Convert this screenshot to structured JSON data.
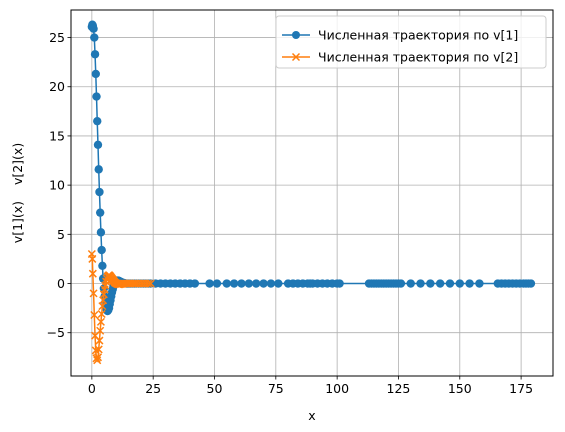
{
  "chart_data": {
    "type": "line",
    "xlabel": "x",
    "ylabel": "v[1](x)    v[2](x)",
    "xlim": [
      -8.5,
      188
    ],
    "ylim": [
      -9.4,
      27.8
    ],
    "xticks": [
      0,
      25,
      50,
      75,
      100,
      125,
      150,
      175
    ],
    "yticks": [
      -5,
      0,
      5,
      10,
      15,
      20,
      25
    ],
    "grid": true,
    "legend_position": "top-right",
    "series": [
      {
        "name": "Численная траектория по v[1]",
        "color": "#1f77b4",
        "marker": "circle",
        "x": [
          0,
          0.2,
          0.4,
          0.7,
          1.0,
          1.3,
          1.6,
          1.9,
          2.2,
          2.5,
          2.8,
          3.1,
          3.4,
          3.7,
          4.0,
          4.3,
          4.6,
          4.9,
          5.2,
          5.5,
          5.8,
          6.1,
          6.4,
          6.7,
          7.0,
          7.3,
          7.6,
          7.9,
          8.2,
          8.5,
          8.8,
          9.1,
          9.4,
          9.7,
          10.0,
          10.4,
          10.8,
          11.2,
          11.6,
          12.0,
          12.5,
          13.0,
          13.5,
          14.0,
          14.6,
          15.2,
          15.8,
          16.5,
          17.2,
          18.0,
          19.0,
          20.0,
          21.0,
          22.0,
          23.0,
          24.0,
          26.0,
          28.0,
          30.0,
          32.0,
          34.0,
          36.0,
          38.0,
          40.0,
          42.0,
          48.0,
          51.0,
          55.0,
          58.0,
          61.0,
          64.0,
          67.0,
          70.0,
          73.0,
          76.0,
          80.0,
          82.0,
          84.0,
          86.0,
          88.0,
          89.0,
          90.0,
          92.0,
          94.0,
          96.0,
          98.0,
          100.0,
          101.0,
          113.0,
          114.0,
          115.0,
          116.0,
          117.0,
          118.0,
          119.0,
          120.0,
          121.0,
          122.0,
          123.0,
          124.0,
          125.0,
          126.0,
          130.0,
          134.0,
          138.0,
          142.0,
          146.0,
          150.0,
          154.0,
          158.0,
          165.5,
          167.0,
          168.5,
          170.0,
          171.5,
          173.0,
          174.5,
          176.0,
          177.0,
          178.0,
          179.0
        ],
        "y": [
          26.1,
          26.3,
          26.2,
          25.9,
          25.0,
          23.3,
          21.3,
          19.0,
          16.5,
          14.1,
          11.6,
          9.3,
          7.2,
          5.2,
          3.4,
          1.8,
          0.5,
          -0.5,
          -1.3,
          -1.9,
          -2.4,
          -2.7,
          -2.8,
          -2.7,
          -2.5,
          -2.1,
          -1.7,
          -1.3,
          -0.9,
          -0.6,
          -0.3,
          -0.1,
          0.1,
          0.2,
          0.3,
          0.3,
          0.3,
          0.25,
          0.2,
          0.15,
          0.1,
          0.05,
          0.02,
          0.0,
          0.0,
          0.0,
          0.0,
          0.0,
          0.0,
          0.0,
          0.0,
          0.0,
          0.0,
          0.0,
          0.0,
          0.0,
          0.0,
          0.0,
          0.0,
          0.0,
          0.0,
          0.0,
          0.0,
          0.0,
          0.0,
          0.0,
          0.0,
          0.0,
          0.0,
          0.0,
          0.0,
          0.0,
          0.0,
          0.0,
          0.0,
          0.0,
          0.0,
          0.0,
          0.0,
          0.0,
          0.0,
          0.0,
          0.0,
          0.0,
          0.0,
          0.0,
          0.0,
          0.0,
          0.0,
          0.0,
          0.0,
          0.0,
          0.0,
          0.0,
          0.0,
          0.0,
          0.0,
          0.0,
          0.0,
          0.0,
          0.0,
          0.0,
          0.0,
          0.0,
          0.0,
          0.0,
          0.0,
          0.0,
          0.0,
          0.0,
          0.0,
          0.0,
          0.0,
          0.0,
          0.0,
          0.0,
          0.0,
          0.0,
          0.0,
          0.0,
          0.0
        ]
      },
      {
        "name": "Численная траектория по v[2]",
        "color": "#ff7f0e",
        "marker": "x",
        "x": [
          0,
          0.2,
          0.4,
          0.7,
          1.0,
          1.3,
          1.6,
          1.9,
          2.2,
          2.5,
          2.8,
          3.1,
          3.4,
          3.7,
          4.0,
          4.3,
          4.6,
          4.9,
          5.2,
          5.5,
          5.8,
          6.1,
          6.4,
          6.7,
          7.0,
          7.3,
          7.6,
          7.9,
          8.2,
          8.5,
          8.8,
          9.1,
          9.4,
          9.7,
          10.0,
          10.4,
          10.8,
          11.2,
          11.6,
          12.0,
          12.5,
          13.0,
          13.5,
          14.0,
          14.6,
          15.2,
          15.8,
          16.5,
          17.2,
          18.0,
          19.0,
          20.0,
          21.0,
          22.0,
          23.0,
          24.0
        ],
        "y": [
          3.0,
          2.5,
          1.0,
          -1.0,
          -3.2,
          -5.3,
          -6.8,
          -7.6,
          -7.8,
          -7.5,
          -6.7,
          -5.8,
          -4.8,
          -3.9,
          -3.1,
          -2.3,
          -1.7,
          -1.1,
          -0.6,
          -0.2,
          0.2,
          0.5,
          0.7,
          0.8,
          0.85,
          0.8,
          0.7,
          0.6,
          0.5,
          0.4,
          0.3,
          0.2,
          0.1,
          0.05,
          0.0,
          -0.05,
          -0.08,
          -0.08,
          -0.06,
          -0.04,
          -0.02,
          0.0,
          0.0,
          0.0,
          0.0,
          0.0,
          0.0,
          0.0,
          0.0,
          0.0,
          0.0,
          0.0,
          0.0,
          0.0,
          0.0,
          0.0
        ]
      }
    ]
  }
}
